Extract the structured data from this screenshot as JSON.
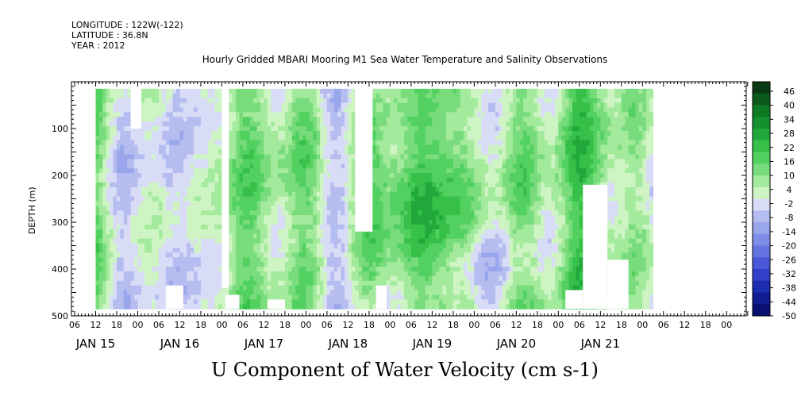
{
  "header": {
    "longitude": "LONGITUDE : 122W(-122)",
    "latitude": "LATITUDE : 36.8N",
    "year": "YEAR : 2012"
  },
  "chart_data": {
    "type": "heatmap",
    "title": "Hourly Gridded MBARI Mooring M1 Sea Water Temperature and Salinity Observations",
    "variable_label": "U Component of Water Velocity (cm s-1)",
    "ylabel": "DEPTH (m)",
    "xlabel": "",
    "y_axis": {
      "ticks": [
        100,
        200,
        300,
        400,
        500
      ],
      "range": [
        0,
        500
      ],
      "inverted": true
    },
    "x_axis": {
      "hour_ticks": [
        "06",
        "12",
        "18",
        "00",
        "06",
        "12",
        "18",
        "00",
        "06",
        "12",
        "18",
        "00",
        "06",
        "12",
        "18",
        "00",
        "06",
        "12",
        "18",
        "00",
        "06",
        "12",
        "18",
        "00",
        "06",
        "12",
        "18",
        "00",
        "06",
        "12",
        "18",
        "00"
      ],
      "day_labels": [
        "JAN 15",
        "JAN 16",
        "JAN 17",
        "JAN 18",
        "JAN 19",
        "JAN 20",
        "JAN 21"
      ]
    },
    "colorbar": {
      "ticks": [
        46,
        40,
        34,
        28,
        22,
        16,
        10,
        4,
        -2,
        -8,
        -14,
        -20,
        -26,
        -32,
        -38,
        -44,
        -50
      ],
      "colors": [
        "#0a3a14",
        "#0c5a1c",
        "#0e7a24",
        "#14902e",
        "#20a83a",
        "#36c04a",
        "#52d060",
        "#78dc7c",
        "#a4ea9c",
        "#cef4c4",
        "#d8dcf6",
        "#b4bcf0",
        "#9aa6ec",
        "#7e8ee8",
        "#6474e0",
        "#4a58d8",
        "#3040c8",
        "#1c2cb0",
        "#101c90",
        "#0a1070"
      ]
    },
    "grid": false
  }
}
